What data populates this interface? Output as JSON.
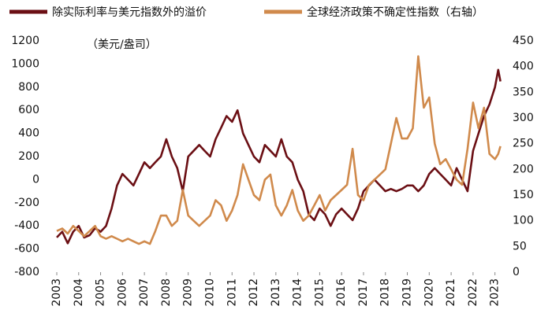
{
  "chart_data": {
    "type": "line",
    "annotation": "（美元/盎司）",
    "x": [
      2003.0,
      2003.25,
      2003.5,
      2003.75,
      2004.0,
      2004.25,
      2004.5,
      2004.75,
      2005.0,
      2005.25,
      2005.5,
      2005.75,
      2006.0,
      2006.25,
      2006.5,
      2006.75,
      2007.0,
      2007.25,
      2007.5,
      2007.75,
      2008.0,
      2008.25,
      2008.5,
      2008.75,
      2009.0,
      2009.25,
      2009.5,
      2009.75,
      2010.0,
      2010.25,
      2010.5,
      2010.75,
      2011.0,
      2011.25,
      2011.5,
      2011.75,
      2012.0,
      2012.25,
      2012.5,
      2012.75,
      2013.0,
      2013.25,
      2013.5,
      2013.75,
      2014.0,
      2014.25,
      2014.5,
      2014.75,
      2015.0,
      2015.25,
      2015.5,
      2015.75,
      2016.0,
      2016.25,
      2016.5,
      2016.75,
      2017.0,
      2017.25,
      2017.5,
      2017.75,
      2018.0,
      2018.25,
      2018.5,
      2018.75,
      2019.0,
      2019.25,
      2019.5,
      2019.75,
      2020.0,
      2020.25,
      2020.5,
      2020.75,
      2021.0,
      2021.25,
      2021.5,
      2021.75,
      2022.0,
      2022.25,
      2022.5,
      2022.75,
      2023.0,
      2023.15,
      2023.25
    ],
    "series": [
      {
        "name": "除实际利率与美元指数外的溢价",
        "color": "#6b0f14",
        "axis": "y",
        "values": [
          -500,
          -450,
          -550,
          -450,
          -400,
          -500,
          -480,
          -420,
          -450,
          -400,
          -250,
          -50,
          50,
          0,
          -50,
          50,
          150,
          100,
          150,
          200,
          350,
          200,
          100,
          -100,
          200,
          250,
          300,
          250,
          200,
          350,
          450,
          550,
          500,
          600,
          400,
          300,
          200,
          150,
          300,
          250,
          200,
          350,
          200,
          150,
          0,
          -100,
          -300,
          -350,
          -250,
          -300,
          -400,
          -300,
          -250,
          -300,
          -350,
          -250,
          -100,
          -50,
          0,
          -50,
          -100,
          -80,
          -100,
          -80,
          -50,
          -50,
          -100,
          -50,
          50,
          100,
          50,
          0,
          -50,
          100,
          0,
          -100,
          250,
          400,
          550,
          650,
          800,
          950,
          850
        ]
      },
      {
        "name": "全球经济政策不确定性指数（右轴）",
        "color": "#d08a4c",
        "axis": "y2",
        "values": [
          80,
          85,
          75,
          90,
          80,
          70,
          80,
          90,
          70,
          65,
          70,
          65,
          60,
          65,
          60,
          55,
          60,
          55,
          80,
          110,
          110,
          90,
          100,
          160,
          110,
          100,
          90,
          100,
          110,
          140,
          130,
          100,
          120,
          150,
          210,
          180,
          150,
          140,
          180,
          190,
          130,
          110,
          130,
          160,
          120,
          100,
          110,
          130,
          150,
          120,
          140,
          150,
          160,
          170,
          240,
          150,
          140,
          170,
          180,
          190,
          200,
          250,
          300,
          260,
          260,
          280,
          420,
          320,
          340,
          250,
          210,
          220,
          200,
          180,
          170,
          240,
          330,
          280,
          320,
          230,
          220,
          230,
          245
        ]
      }
    ],
    "xlim": [
      2003,
      2023.3
    ],
    "xticks": [
      2003,
      2004,
      2005,
      2006,
      2007,
      2008,
      2009,
      2010,
      2011,
      2012,
      2013,
      2014,
      2015,
      2016,
      2017,
      2018,
      2019,
      2020,
      2021,
      2022,
      2023
    ],
    "ylim": [
      -800,
      1200
    ],
    "yticks": [
      -800,
      -600,
      -400,
      -200,
      0,
      200,
      400,
      600,
      800,
      1000,
      1200
    ],
    "y2lim": [
      0,
      450
    ],
    "y2ticks": [
      0,
      50,
      100,
      150,
      200,
      250,
      300,
      350,
      400,
      450
    ]
  }
}
